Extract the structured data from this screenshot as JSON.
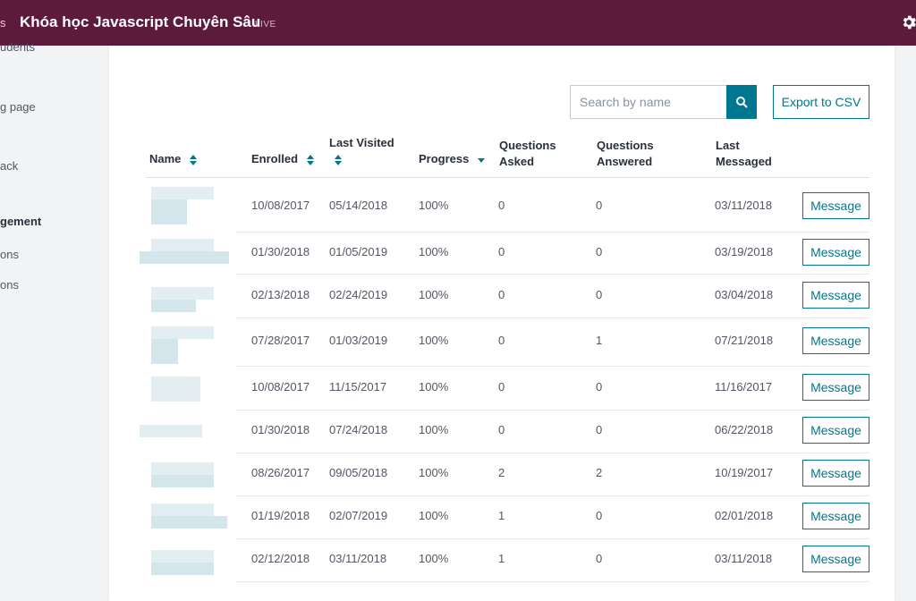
{
  "topbar": {
    "crumb": "s",
    "title": "Khóa học Javascript Chuyên Sâu",
    "status": "LIVE"
  },
  "sidebar": {
    "items": [
      {
        "label": "udents",
        "top": 0
      },
      {
        "label": "g page",
        "top": 0
      },
      {
        "label": "ack",
        "top": 0
      },
      {
        "label": "gement",
        "top": 0
      },
      {
        "label": "ons",
        "top": 0
      },
      {
        "label": "ons",
        "top": 0
      }
    ]
  },
  "toolbar": {
    "search_placeholder": "Search by name",
    "export_label": "Export to CSV"
  },
  "table": {
    "columns": {
      "name": "Name",
      "enrolled": "Enrolled",
      "last_visited": "Last Visited",
      "progress": "Progress",
      "questions_asked_1": "Questions",
      "questions_asked_2": "Asked",
      "questions_answered_1": "Questions",
      "questions_answered_2": "Answered",
      "last_messaged_1": "Last",
      "last_messaged_2": "Messaged"
    },
    "message_label": "Message",
    "rows": [
      {
        "enrolled": "10/08/2017",
        "last_visited": "05/14/2018",
        "progress": "100%",
        "asked": "0",
        "answered": "0",
        "last_messaged": "03/11/2018"
      },
      {
        "enrolled": "01/30/2018",
        "last_visited": "01/05/2019",
        "progress": "100%",
        "asked": "0",
        "answered": "0",
        "last_messaged": "03/19/2018"
      },
      {
        "enrolled": "02/13/2018",
        "last_visited": "02/24/2019",
        "progress": "100%",
        "asked": "0",
        "answered": "0",
        "last_messaged": "03/04/2018"
      },
      {
        "enrolled": "07/28/2017",
        "last_visited": "01/03/2019",
        "progress": "100%",
        "asked": "0",
        "answered": "1",
        "last_messaged": "07/21/2018"
      },
      {
        "enrolled": "10/08/2017",
        "last_visited": "11/15/2017",
        "progress": "100%",
        "asked": "0",
        "answered": "0",
        "last_messaged": "11/16/2017"
      },
      {
        "enrolled": "01/30/2018",
        "last_visited": "07/24/2018",
        "progress": "100%",
        "asked": "0",
        "answered": "0",
        "last_messaged": "06/22/2018"
      },
      {
        "enrolled": "08/26/2017",
        "last_visited": "09/05/2018",
        "progress": "100%",
        "asked": "2",
        "answered": "2",
        "last_messaged": "10/19/2017"
      },
      {
        "enrolled": "01/19/2018",
        "last_visited": "02/07/2019",
        "progress": "100%",
        "asked": "1",
        "answered": "0",
        "last_messaged": "02/01/2018"
      },
      {
        "enrolled": "02/12/2018",
        "last_visited": "03/11/2018",
        "progress": "100%",
        "asked": "1",
        "answered": "0",
        "last_messaged": "03/11/2018"
      }
    ]
  },
  "colors": {
    "topbar": "#5c1a3d",
    "accent": "#007791"
  }
}
